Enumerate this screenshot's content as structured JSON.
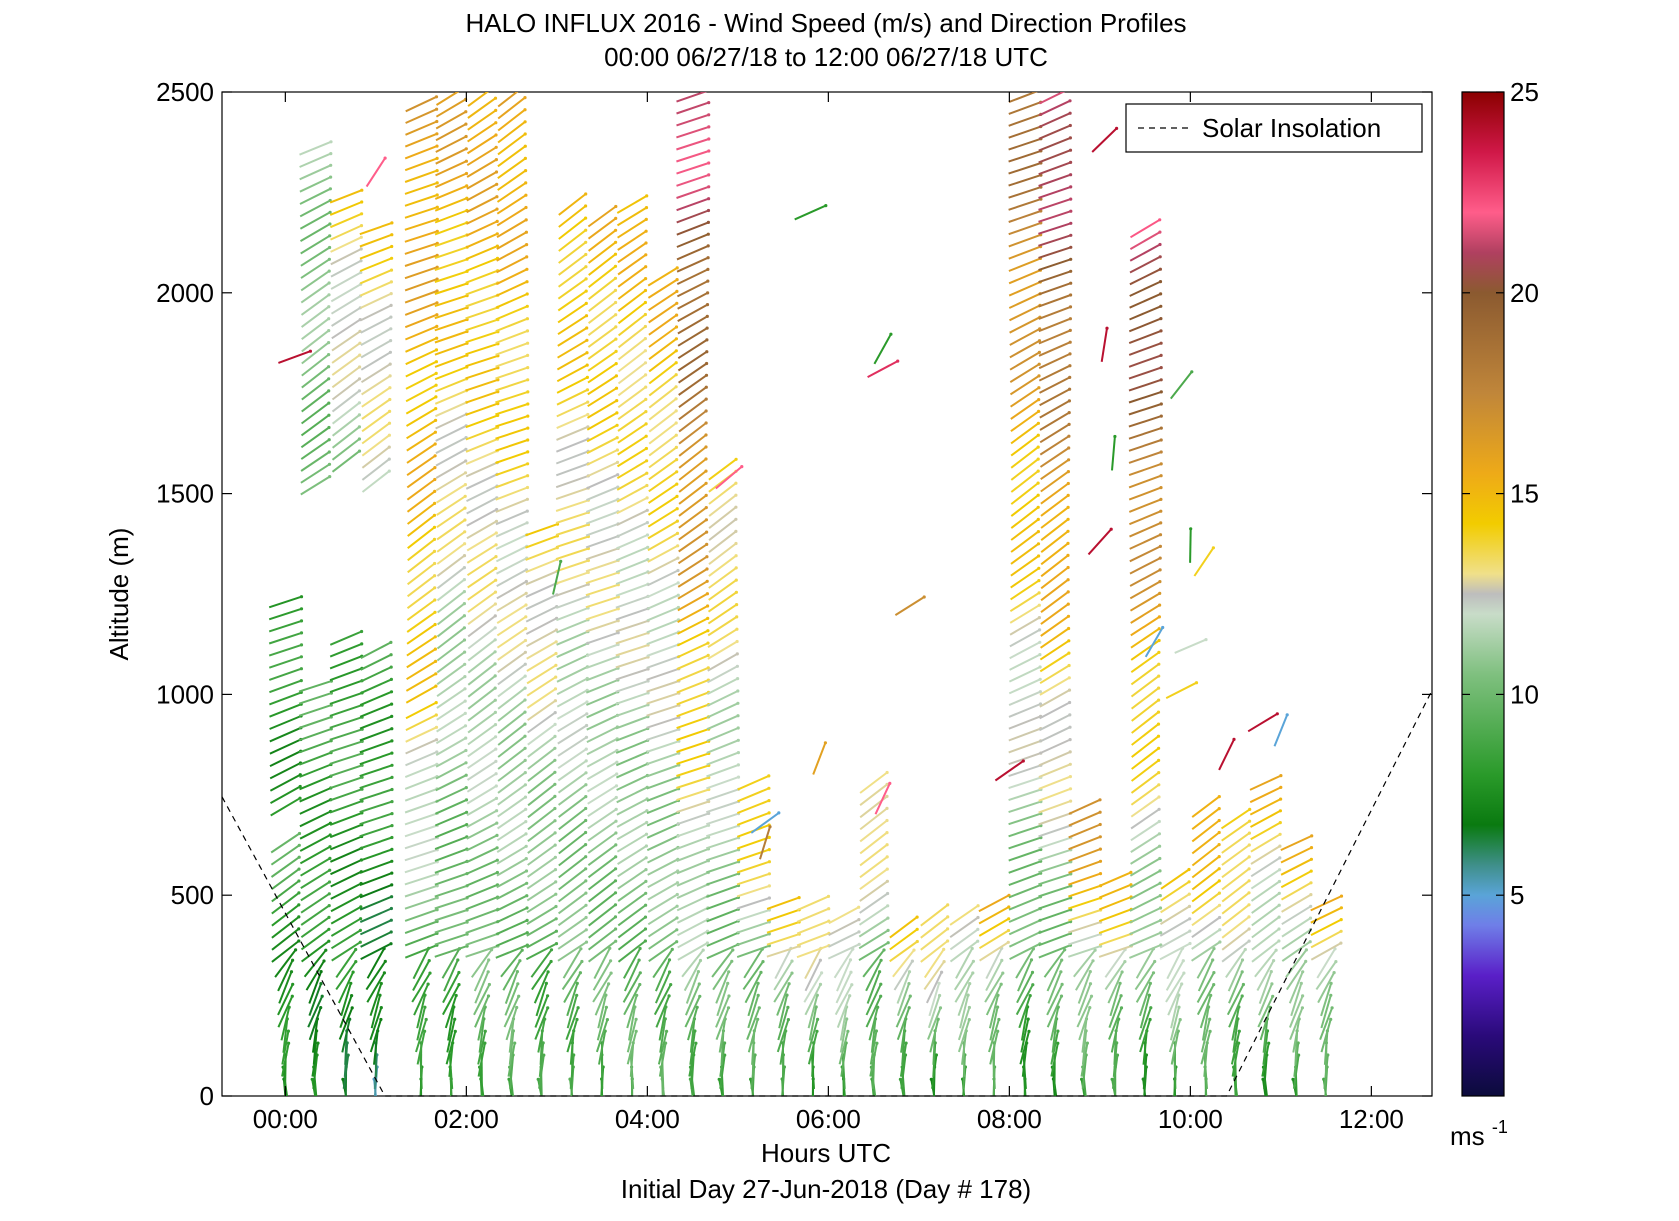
{
  "chart_data": {
    "type": "scatter",
    "title": "HALO INFLUX 2016 - Wind Speed (m/s) and Direction Profiles",
    "subtitle": "00:00 06/27/18 to 12:00 06/27/18  UTC",
    "xlabel": "Hours UTC",
    "ylabel": "Altitude (m)",
    "footer": "Initial Day 27-Jun-2018 (Day # 178)",
    "xlim": [
      -0.7,
      12.67
    ],
    "ylim": [
      0,
      2500
    ],
    "x_ticks": [
      0,
      2,
      4,
      6,
      8,
      10,
      12
    ],
    "x_tick_labels": [
      "00:00",
      "02:00",
      "04:00",
      "06:00",
      "08:00",
      "10:00",
      "12:00"
    ],
    "y_ticks": [
      0,
      500,
      1000,
      1500,
      2000,
      2500
    ],
    "y_tick_labels": [
      "0",
      "500",
      "1000",
      "1500",
      "2000",
      "2500"
    ],
    "legend": {
      "entry": "Solar Insolation",
      "placement": "top-right",
      "style": "dashed"
    },
    "solar_insolation": {
      "x": [
        -0.7,
        1.1,
        10.4,
        12.67
      ],
      "y": [
        745,
        0,
        0,
        1010
      ]
    },
    "colorbar": {
      "min": 0,
      "max": 25,
      "ticks": [
        5,
        10,
        15,
        20,
        25
      ],
      "tick_labels": [
        "5",
        "10",
        "15",
        "20",
        "25"
      ],
      "unit": "ms",
      "unit_exp": "-1",
      "colors": [
        "#0b0b3b",
        "#2a0a7a",
        "#5a1fc8",
        "#6f7ee8",
        "#5aa4d8",
        "#3f8f8a",
        "#0a7a10",
        "#2a9a2a",
        "#7fc07f",
        "#c8dcc8",
        "#bdbdbd",
        "#f0e08a",
        "#f2cc00",
        "#eeaa18",
        "#c0863a",
        "#8b5a30",
        "#b04060",
        "#ff5d8a",
        "#d01848",
        "#8b0000"
      ],
      "stops": [
        0,
        0.06,
        0.12,
        0.17,
        0.2,
        0.23,
        0.27,
        0.32,
        0.42,
        0.48,
        0.5,
        0.52,
        0.57,
        0.62,
        0.7,
        0.8,
        0.84,
        0.88,
        0.94,
        1
      ]
    },
    "wind_profiles": [
      {
        "t": 0.0,
        "segments": [
          {
            "from": 0,
            "to": 650,
            "speed": [
              7,
              9
            ]
          },
          {
            "from": 720,
            "to": 1240,
            "speed": [
              8,
              8
            ]
          }
        ]
      },
      {
        "t": 0.33,
        "segments": [
          {
            "from": 0,
            "to": 1040,
            "speed": [
              7,
              9
            ]
          },
          {
            "from": 1520,
            "to": 2360,
            "speed": [
              10,
              11
            ]
          }
        ]
      },
      {
        "t": 0.67,
        "segments": [
          {
            "from": 0,
            "to": 1160,
            "speed": [
              7,
              9
            ]
          },
          {
            "from": 1580,
            "to": 2250,
            "speed": [
              11,
              14
            ]
          }
        ]
      },
      {
        "t": 1.0,
        "segments": [
          {
            "from": 0,
            "to": 1120,
            "speed": [
              6,
              9
            ]
          },
          {
            "from": 1530,
            "to": 2180,
            "speed": [
              12,
              14
            ]
          }
        ]
      },
      {
        "t": 1.5,
        "segments": [
          {
            "from": 0,
            "to": 980,
            "speed": [
              7,
              14
            ]
          },
          {
            "from": 1000,
            "to": 2490,
            "speed": [
              14,
              16
            ]
          }
        ]
      },
      {
        "t": 1.83,
        "segments": [
          {
            "from": 0,
            "to": 2490,
            "speed": [
              8,
              16
            ]
          }
        ]
      },
      {
        "t": 2.17,
        "segments": [
          {
            "from": 0,
            "to": 2490,
            "speed": [
              9,
              16
            ]
          }
        ]
      },
      {
        "t": 2.5,
        "segments": [
          {
            "from": 0,
            "to": 2490,
            "speed": [
              9,
              16
            ]
          }
        ]
      },
      {
        "t": 2.83,
        "segments": [
          {
            "from": 0,
            "to": 1410,
            "speed": [
              8,
              14
            ]
          }
        ]
      },
      {
        "t": 3.17,
        "segments": [
          {
            "from": 0,
            "to": 2240,
            "speed": [
              9,
              15
            ]
          }
        ]
      },
      {
        "t": 3.5,
        "segments": [
          {
            "from": 0,
            "to": 2210,
            "speed": [
              9,
              15
            ]
          }
        ]
      },
      {
        "t": 3.83,
        "segments": [
          {
            "from": 0,
            "to": 2240,
            "speed": [
              9,
              15
            ]
          }
        ]
      },
      {
        "t": 4.17,
        "segments": [
          {
            "from": 0,
            "to": 2040,
            "speed": [
              9,
              15
            ]
          }
        ]
      },
      {
        "t": 4.5,
        "segments": [
          {
            "from": 0,
            "to": 2500,
            "speed": [
              9,
              22
            ]
          }
        ]
      },
      {
        "t": 4.83,
        "segments": [
          {
            "from": 0,
            "to": 1560,
            "speed": [
              9,
              14
            ]
          }
        ]
      },
      {
        "t": 5.17,
        "segments": [
          {
            "from": 0,
            "to": 800,
            "speed": [
              8,
              15
            ]
          }
        ]
      },
      {
        "t": 5.5,
        "segments": [
          {
            "from": 0,
            "to": 490,
            "speed": [
              8,
              14
            ]
          }
        ]
      },
      {
        "t": 5.83,
        "segments": [
          {
            "from": 0,
            "to": 500,
            "speed": [
              8,
              14
            ]
          }
        ]
      },
      {
        "t": 6.17,
        "segments": [
          {
            "from": 0,
            "to": 460,
            "speed": [
              8,
              14
            ]
          }
        ]
      },
      {
        "t": 6.5,
        "segments": [
          {
            "from": 0,
            "to": 790,
            "speed": [
              8,
              14
            ]
          }
        ]
      },
      {
        "t": 6.83,
        "segments": [
          {
            "from": 0,
            "to": 440,
            "speed": [
              8,
              14
            ]
          }
        ]
      },
      {
        "t": 7.17,
        "segments": [
          {
            "from": 0,
            "to": 450,
            "speed": [
              8,
              14
            ]
          }
        ]
      },
      {
        "t": 7.5,
        "segments": [
          {
            "from": 0,
            "to": 470,
            "speed": [
              8,
              14
            ]
          }
        ]
      },
      {
        "t": 7.83,
        "segments": [
          {
            "from": 0,
            "to": 500,
            "speed": [
              8,
              15
            ]
          }
        ]
      },
      {
        "t": 8.17,
        "segments": [
          {
            "from": 0,
            "to": 2500,
            "speed": [
              8,
              19
            ]
          }
        ]
      },
      {
        "t": 8.5,
        "segments": [
          {
            "from": 0,
            "to": 2500,
            "speed": [
              8,
              22
            ]
          }
        ]
      },
      {
        "t": 8.83,
        "segments": [
          {
            "from": 0,
            "to": 720,
            "speed": [
              8,
              17
            ]
          }
        ]
      },
      {
        "t": 9.17,
        "segments": [
          {
            "from": 0,
            "to": 560,
            "speed": [
              8,
              15
            ]
          }
        ]
      },
      {
        "t": 9.5,
        "segments": [
          {
            "from": 0,
            "to": 2180,
            "speed": [
              8,
              22
            ]
          }
        ]
      },
      {
        "t": 9.83,
        "segments": [
          {
            "from": 0,
            "to": 560,
            "speed": [
              8,
              15
            ]
          }
        ]
      },
      {
        "t": 10.17,
        "segments": [
          {
            "from": 0,
            "to": 740,
            "speed": [
              8,
              16
            ]
          }
        ]
      },
      {
        "t": 10.5,
        "segments": [
          {
            "from": 0,
            "to": 700,
            "speed": [
              8,
              15
            ]
          }
        ]
      },
      {
        "t": 10.83,
        "segments": [
          {
            "from": 0,
            "to": 790,
            "speed": [
              8,
              15
            ]
          }
        ]
      },
      {
        "t": 11.17,
        "segments": [
          {
            "from": 0,
            "to": 640,
            "speed": [
              8,
              15
            ]
          }
        ]
      },
      {
        "t": 11.5,
        "segments": [
          {
            "from": 0,
            "to": 500,
            "speed": [
              8,
              15
            ]
          }
        ]
      }
    ],
    "isolated_barbs": [
      {
        "t": 0.1,
        "alt": 1840,
        "speed": 24
      },
      {
        "t": 1.0,
        "alt": 2300,
        "speed": 22
      },
      {
        "t": 5.8,
        "alt": 2200,
        "speed": 8
      },
      {
        "t": 6.6,
        "alt": 1860,
        "speed": 8
      },
      {
        "t": 6.6,
        "alt": 1810,
        "speed": 23
      },
      {
        "t": 6.6,
        "alt": 740,
        "speed": 22
      },
      {
        "t": 6.9,
        "alt": 1220,
        "speed": 17
      },
      {
        "t": 5.9,
        "alt": 840,
        "speed": 16
      },
      {
        "t": 5.3,
        "alt": 680,
        "speed": 5
      },
      {
        "t": 5.3,
        "alt": 630,
        "speed": 18
      },
      {
        "t": 4.9,
        "alt": 1540,
        "speed": 22
      },
      {
        "t": 3.0,
        "alt": 1290,
        "speed": 9
      },
      {
        "t": 9.05,
        "alt": 2380,
        "speed": 24
      },
      {
        "t": 9.05,
        "alt": 1870,
        "speed": 24
      },
      {
        "t": 9.0,
        "alt": 1380,
        "speed": 24
      },
      {
        "t": 9.15,
        "alt": 1600,
        "speed": 8
      },
      {
        "t": 9.9,
        "alt": 1770,
        "speed": 9
      },
      {
        "t": 10.0,
        "alt": 1370,
        "speed": 8
      },
      {
        "t": 10.15,
        "alt": 1330,
        "speed": 14
      },
      {
        "t": 10.0,
        "alt": 1120,
        "speed": 12
      },
      {
        "t": 9.6,
        "alt": 1130,
        "speed": 5
      },
      {
        "t": 9.9,
        "alt": 1010,
        "speed": 14
      },
      {
        "t": 10.4,
        "alt": 850,
        "speed": 24
      },
      {
        "t": 10.8,
        "alt": 930,
        "speed": 24
      },
      {
        "t": 11.0,
        "alt": 910,
        "speed": 5
      },
      {
        "t": 8.0,
        "alt": 810,
        "speed": 24
      }
    ]
  }
}
